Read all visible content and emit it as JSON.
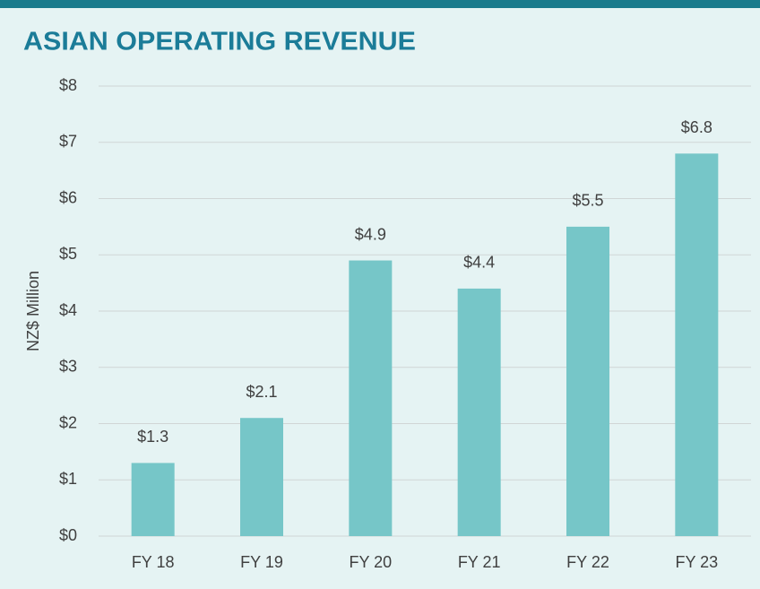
{
  "chart_data": {
    "type": "bar",
    "title": "ASIAN OPERATING REVENUE",
    "y_label": "NZ$ Million",
    "categories": [
      "FY 18",
      "FY 19",
      "FY 20",
      "FY 21",
      "FY 22",
      "FY 23"
    ],
    "values": [
      1.3,
      2.1,
      4.9,
      4.4,
      5.5,
      6.8
    ],
    "value_labels": [
      "$1.3",
      "$2.1",
      "$4.9",
      "$4.4",
      "$5.5",
      "$6.8"
    ],
    "color": "#76c6c8",
    "ylim": [
      0,
      8
    ],
    "yticks": [
      {
        "value": 0,
        "label": "$0"
      },
      {
        "value": 1,
        "label": "$1"
      },
      {
        "value": 2,
        "label": "$2"
      },
      {
        "value": 3,
        "label": "$3"
      },
      {
        "value": 4,
        "label": "$4"
      },
      {
        "value": 5,
        "label": "$5"
      },
      {
        "value": 6,
        "label": "$6"
      },
      {
        "value": 7,
        "label": "$7"
      },
      {
        "value": 8,
        "label": "$8"
      }
    ],
    "grid": true
  }
}
